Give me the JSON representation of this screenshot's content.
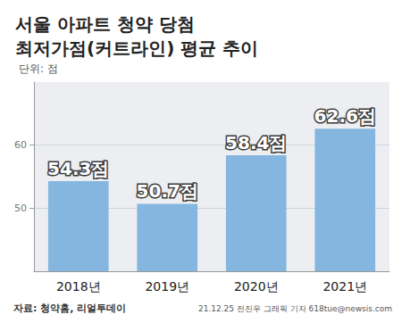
{
  "chart_data": {
    "type": "bar",
    "title": "서울 아파트 청약 당첨\n최저가점(커트라인) 평균 추이",
    "subtitle": "단위: 점",
    "annotations": [
      "자료: 청약홈, 리얼투데이",
      "21.12.25 전진우 그래픽 기자 618tue@newsis.com"
    ],
    "categories": [
      "2018년",
      "2019년",
      "2020년",
      "2021년"
    ],
    "values": [
      54.3,
      50.7,
      58.4,
      62.6
    ],
    "value_labels": [
      "54.3점",
      "50.7점",
      "58.4점",
      "62.6점"
    ],
    "data_labels": true,
    "color": "#84b6df",
    "ylim": [
      40,
      70
    ],
    "yticks": [
      50,
      60
    ],
    "grid": true
  }
}
